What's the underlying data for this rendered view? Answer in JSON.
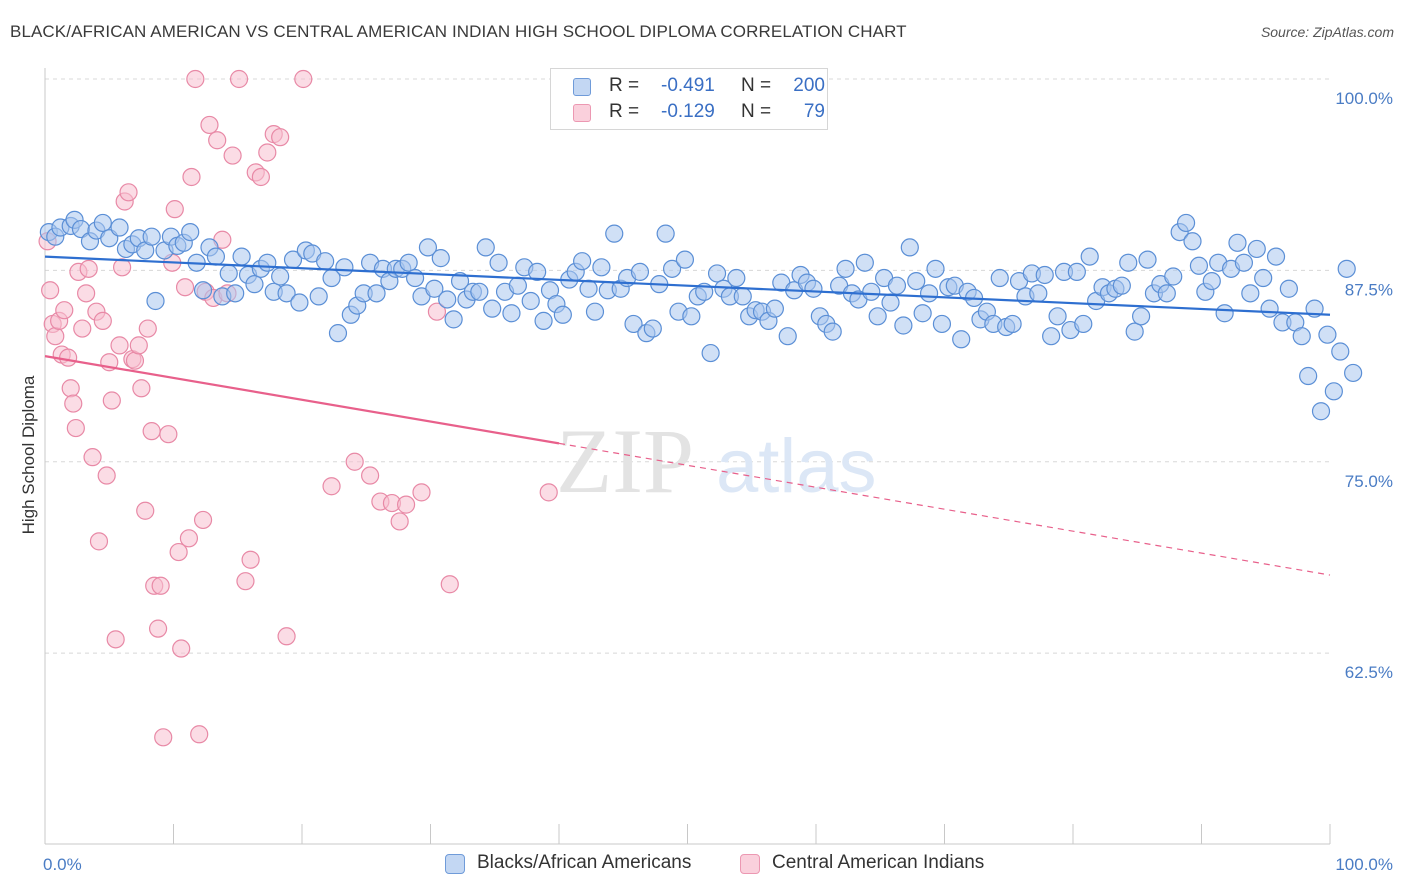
{
  "title": "BLACK/AFRICAN AMERICAN VS CENTRAL AMERICAN INDIAN HIGH SCHOOL DIPLOMA CORRELATION CHART",
  "source": "Source: ZipAtlas.com",
  "watermark": {
    "zip": "ZIP",
    "atlas": "atlas"
  },
  "colors": {
    "blue_fill": "#a9c6ef",
    "blue_stroke": "#5b8fd6",
    "blue_line": "#2e6fd0",
    "pink_fill": "#f7bfd0",
    "pink_stroke": "#e889a6",
    "pink_line": "#e8608b",
    "tick_label": "#4a7cc4",
    "grid": "#d8d8d8"
  },
  "legend_top": [
    {
      "r_label": "R =",
      "r_value": "-0.491",
      "n_label": "N =",
      "n_value": "200"
    },
    {
      "r_label": "R =",
      "r_value": "-0.129",
      "n_label": "N =",
      "n_value": "79"
    }
  ],
  "chart_data": {
    "type": "scatter",
    "title": "BLACK/AFRICAN AMERICAN VS CENTRAL AMERICAN INDIAN HIGH SCHOOL DIPLOMA CORRELATION CHART",
    "xlabel": "",
    "ylabel": "High School Diploma",
    "xlim": [
      0,
      100
    ],
    "ylim": [
      50,
      101.5
    ],
    "x_tick_labels": [
      "0.0%",
      "100.0%"
    ],
    "y_ticks": [
      100,
      87.5,
      75,
      62.5
    ],
    "y_tick_labels": [
      "100.0%",
      "87.5%",
      "75.0%",
      "62.5%"
    ],
    "grid": "horizontal dashed",
    "legend_position": "top-center and bottom",
    "series": [
      {
        "name": "Blacks/African Americans",
        "r": -0.491,
        "n": 200,
        "trend": {
          "x": [
            0,
            100
          ],
          "y": [
            88.4,
            84.6
          ]
        },
        "points": [
          [
            0.3,
            90.0
          ],
          [
            0.8,
            89.7
          ],
          [
            1.2,
            90.3
          ],
          [
            2.0,
            90.4
          ],
          [
            2.3,
            90.8
          ],
          [
            2.8,
            90.2
          ],
          [
            3.5,
            89.4
          ],
          [
            4.0,
            90.1
          ],
          [
            4.5,
            90.6
          ],
          [
            5.0,
            89.6
          ],
          [
            5.8,
            90.3
          ],
          [
            6.3,
            88.9
          ],
          [
            6.8,
            89.2
          ],
          [
            7.3,
            89.6
          ],
          [
            7.8,
            88.8
          ],
          [
            8.3,
            89.7
          ],
          [
            8.6,
            85.5
          ],
          [
            9.3,
            88.8
          ],
          [
            9.8,
            89.7
          ],
          [
            10.3,
            89.1
          ],
          [
            10.8,
            89.3
          ],
          [
            11.3,
            90.0
          ],
          [
            11.8,
            88.0
          ],
          [
            12.3,
            86.2
          ],
          [
            12.8,
            89.0
          ],
          [
            13.3,
            88.4
          ],
          [
            13.8,
            85.8
          ],
          [
            14.3,
            87.3
          ],
          [
            14.8,
            86.0
          ],
          [
            15.3,
            88.4
          ],
          [
            15.8,
            87.2
          ],
          [
            16.3,
            86.6
          ],
          [
            16.8,
            87.6
          ],
          [
            17.3,
            88.0
          ],
          [
            17.8,
            86.1
          ],
          [
            18.3,
            87.1
          ],
          [
            18.8,
            86.0
          ],
          [
            19.3,
            88.2
          ],
          [
            19.8,
            85.4
          ],
          [
            20.3,
            88.8
          ],
          [
            20.8,
            88.6
          ],
          [
            21.3,
            85.8
          ],
          [
            21.8,
            88.1
          ],
          [
            22.3,
            87.0
          ],
          [
            22.8,
            83.4
          ],
          [
            23.3,
            87.7
          ],
          [
            23.8,
            84.6
          ],
          [
            24.3,
            85.2
          ],
          [
            24.8,
            86.0
          ],
          [
            25.3,
            88.0
          ],
          [
            25.8,
            86.0
          ],
          [
            26.3,
            87.6
          ],
          [
            26.8,
            86.8
          ],
          [
            27.3,
            87.6
          ],
          [
            27.8,
            87.6
          ],
          [
            28.3,
            88.0
          ],
          [
            28.8,
            87.0
          ],
          [
            29.3,
            85.8
          ],
          [
            29.8,
            89.0
          ],
          [
            30.3,
            86.3
          ],
          [
            30.8,
            88.3
          ],
          [
            31.3,
            85.6
          ],
          [
            31.8,
            84.3
          ],
          [
            32.3,
            86.8
          ],
          [
            32.8,
            85.6
          ],
          [
            33.3,
            86.1
          ],
          [
            33.8,
            86.1
          ],
          [
            34.3,
            89.0
          ],
          [
            34.8,
            85.0
          ],
          [
            35.3,
            88.0
          ],
          [
            35.8,
            86.1
          ],
          [
            36.3,
            84.7
          ],
          [
            36.8,
            86.5
          ],
          [
            37.3,
            87.7
          ],
          [
            37.8,
            85.5
          ],
          [
            38.3,
            87.4
          ],
          [
            38.8,
            84.2
          ],
          [
            39.3,
            86.2
          ],
          [
            39.8,
            85.3
          ],
          [
            40.3,
            84.6
          ],
          [
            40.8,
            86.9
          ],
          [
            41.3,
            87.4
          ],
          [
            41.8,
            88.1
          ],
          [
            42.3,
            86.3
          ],
          [
            42.8,
            84.8
          ],
          [
            43.3,
            87.7
          ],
          [
            43.8,
            86.2
          ],
          [
            44.3,
            89.9
          ],
          [
            44.8,
            86.3
          ],
          [
            45.3,
            87.0
          ],
          [
            45.8,
            84.0
          ],
          [
            46.3,
            87.4
          ],
          [
            46.8,
            83.4
          ],
          [
            47.3,
            83.7
          ],
          [
            47.8,
            86.6
          ],
          [
            48.3,
            89.9
          ],
          [
            48.8,
            87.6
          ],
          [
            49.3,
            84.8
          ],
          [
            49.8,
            88.2
          ],
          [
            50.3,
            84.5
          ],
          [
            50.8,
            85.8
          ],
          [
            51.3,
            86.1
          ],
          [
            51.8,
            82.1
          ],
          [
            52.3,
            87.3
          ],
          [
            52.8,
            86.3
          ],
          [
            53.3,
            85.8
          ],
          [
            53.8,
            87.0
          ],
          [
            54.3,
            85.8
          ],
          [
            54.8,
            84.5
          ],
          [
            55.3,
            84.9
          ],
          [
            55.8,
            84.8
          ],
          [
            56.3,
            84.2
          ],
          [
            56.8,
            85.0
          ],
          [
            57.3,
            86.7
          ],
          [
            57.8,
            83.2
          ],
          [
            58.3,
            86.2
          ],
          [
            58.8,
            87.2
          ],
          [
            59.3,
            86.7
          ],
          [
            59.8,
            86.3
          ],
          [
            60.3,
            84.5
          ],
          [
            60.8,
            84.0
          ],
          [
            61.3,
            83.5
          ],
          [
            61.8,
            86.5
          ],
          [
            62.3,
            87.6
          ],
          [
            62.8,
            86.0
          ],
          [
            63.3,
            85.6
          ],
          [
            63.8,
            88.0
          ],
          [
            64.3,
            86.1
          ],
          [
            64.8,
            84.5
          ],
          [
            65.3,
            87.0
          ],
          [
            65.8,
            85.4
          ],
          [
            66.3,
            86.5
          ],
          [
            66.8,
            83.9
          ],
          [
            67.3,
            89.0
          ],
          [
            67.8,
            86.8
          ],
          [
            68.3,
            84.7
          ],
          [
            68.8,
            86.0
          ],
          [
            69.3,
            87.6
          ],
          [
            69.8,
            84.0
          ],
          [
            70.3,
            86.4
          ],
          [
            70.8,
            86.5
          ],
          [
            71.3,
            83.0
          ],
          [
            71.8,
            86.1
          ],
          [
            72.3,
            85.7
          ],
          [
            72.8,
            84.3
          ],
          [
            73.3,
            84.8
          ],
          [
            73.8,
            84.0
          ],
          [
            74.3,
            87.0
          ],
          [
            74.8,
            83.8
          ],
          [
            75.3,
            84.0
          ],
          [
            75.8,
            86.8
          ],
          [
            76.3,
            85.8
          ],
          [
            76.8,
            87.3
          ],
          [
            77.3,
            86.0
          ],
          [
            77.8,
            87.2
          ],
          [
            78.3,
            83.2
          ],
          [
            78.8,
            84.5
          ],
          [
            79.3,
            87.4
          ],
          [
            79.8,
            83.6
          ],
          [
            80.3,
            87.4
          ],
          [
            80.8,
            84.0
          ],
          [
            81.3,
            88.4
          ],
          [
            81.8,
            85.5
          ],
          [
            82.3,
            86.4
          ],
          [
            82.8,
            86.0
          ],
          [
            83.3,
            86.3
          ],
          [
            83.8,
            86.5
          ],
          [
            84.3,
            88.0
          ],
          [
            84.8,
            83.5
          ],
          [
            85.3,
            84.5
          ],
          [
            85.8,
            88.2
          ],
          [
            86.3,
            86.0
          ],
          [
            86.8,
            86.6
          ],
          [
            87.3,
            86.0
          ],
          [
            87.8,
            87.1
          ],
          [
            88.3,
            90.0
          ],
          [
            88.8,
            90.6
          ],
          [
            89.3,
            89.4
          ],
          [
            89.8,
            87.8
          ],
          [
            90.3,
            86.1
          ],
          [
            90.8,
            86.8
          ],
          [
            91.3,
            88.0
          ],
          [
            91.8,
            84.7
          ],
          [
            92.3,
            87.6
          ],
          [
            92.8,
            89.3
          ],
          [
            93.3,
            88.0
          ],
          [
            93.8,
            86.0
          ],
          [
            94.3,
            88.9
          ],
          [
            94.8,
            87.0
          ],
          [
            95.3,
            85.0
          ],
          [
            95.8,
            88.4
          ],
          [
            96.3,
            84.1
          ],
          [
            96.8,
            86.3
          ],
          [
            97.3,
            84.1
          ],
          [
            97.8,
            83.2
          ],
          [
            98.3,
            80.6
          ],
          [
            98.8,
            85.0
          ],
          [
            99.3,
            78.3
          ],
          [
            99.8,
            83.3
          ],
          [
            100.3,
            79.6
          ],
          [
            100.8,
            82.2
          ],
          [
            101.3,
            87.6
          ],
          [
            101.8,
            80.8
          ]
        ]
      },
      {
        "name": "Central American Indians",
        "r": -0.129,
        "n": 79,
        "trend_solid": {
          "x": [
            0,
            40
          ],
          "y": [
            81.9,
            76.2
          ]
        },
        "trend_dashed": {
          "x": [
            40,
            100
          ],
          "y": [
            76.2,
            67.6
          ]
        },
        "points": [
          [
            0.2,
            89.4
          ],
          [
            0.4,
            86.2
          ],
          [
            0.6,
            84.0
          ],
          [
            0.8,
            83.2
          ],
          [
            1.1,
            84.2
          ],
          [
            1.3,
            82.0
          ],
          [
            1.5,
            84.9
          ],
          [
            1.8,
            81.8
          ],
          [
            2.0,
            79.8
          ],
          [
            2.2,
            78.8
          ],
          [
            2.4,
            77.2
          ],
          [
            2.6,
            87.4
          ],
          [
            2.9,
            83.7
          ],
          [
            3.2,
            86.0
          ],
          [
            3.4,
            87.6
          ],
          [
            3.7,
            75.3
          ],
          [
            4.0,
            84.8
          ],
          [
            4.2,
            69.8
          ],
          [
            4.5,
            84.2
          ],
          [
            4.8,
            74.1
          ],
          [
            5.0,
            81.5
          ],
          [
            5.2,
            79.0
          ],
          [
            5.5,
            63.4
          ],
          [
            5.8,
            82.6
          ],
          [
            6.0,
            87.7
          ],
          [
            6.2,
            92.0
          ],
          [
            6.5,
            92.6
          ],
          [
            6.8,
            81.7
          ],
          [
            7.0,
            81.6
          ],
          [
            7.3,
            82.6
          ],
          [
            7.5,
            79.8
          ],
          [
            7.8,
            71.8
          ],
          [
            8.0,
            83.7
          ],
          [
            8.3,
            77.0
          ],
          [
            8.5,
            66.9
          ],
          [
            8.8,
            64.1
          ],
          [
            9.0,
            66.9
          ],
          [
            9.2,
            57.0
          ],
          [
            9.6,
            76.8
          ],
          [
            9.9,
            88.0
          ],
          [
            10.1,
            91.5
          ],
          [
            10.4,
            69.1
          ],
          [
            10.6,
            62.8
          ],
          [
            10.9,
            86.4
          ],
          [
            11.2,
            70.0
          ],
          [
            11.4,
            93.6
          ],
          [
            11.7,
            100.0
          ],
          [
            12.0,
            57.2
          ],
          [
            12.3,
            71.2
          ],
          [
            12.5,
            86.1
          ],
          [
            12.8,
            97.0
          ],
          [
            13.1,
            85.7
          ],
          [
            13.4,
            96.0
          ],
          [
            13.8,
            89.5
          ],
          [
            14.2,
            86.0
          ],
          [
            14.6,
            95.0
          ],
          [
            15.1,
            100.0
          ],
          [
            15.6,
            67.2
          ],
          [
            16.0,
            68.6
          ],
          [
            16.4,
            93.9
          ],
          [
            16.8,
            93.6
          ],
          [
            17.3,
            95.2
          ],
          [
            17.8,
            96.4
          ],
          [
            18.3,
            96.2
          ],
          [
            18.8,
            63.6
          ],
          [
            20.1,
            100.0
          ],
          [
            22.3,
            73.4
          ],
          [
            24.1,
            75.0
          ],
          [
            25.3,
            74.1
          ],
          [
            26.1,
            72.4
          ],
          [
            27.0,
            72.3
          ],
          [
            27.6,
            71.1
          ],
          [
            28.1,
            72.2
          ],
          [
            29.3,
            73.0
          ],
          [
            30.5,
            84.8
          ],
          [
            31.5,
            67.0
          ],
          [
            39.2,
            73.0
          ]
        ]
      }
    ]
  },
  "legend_bottom": [
    {
      "label": "Blacks/African Americans"
    },
    {
      "label": "Central American Indians"
    }
  ]
}
